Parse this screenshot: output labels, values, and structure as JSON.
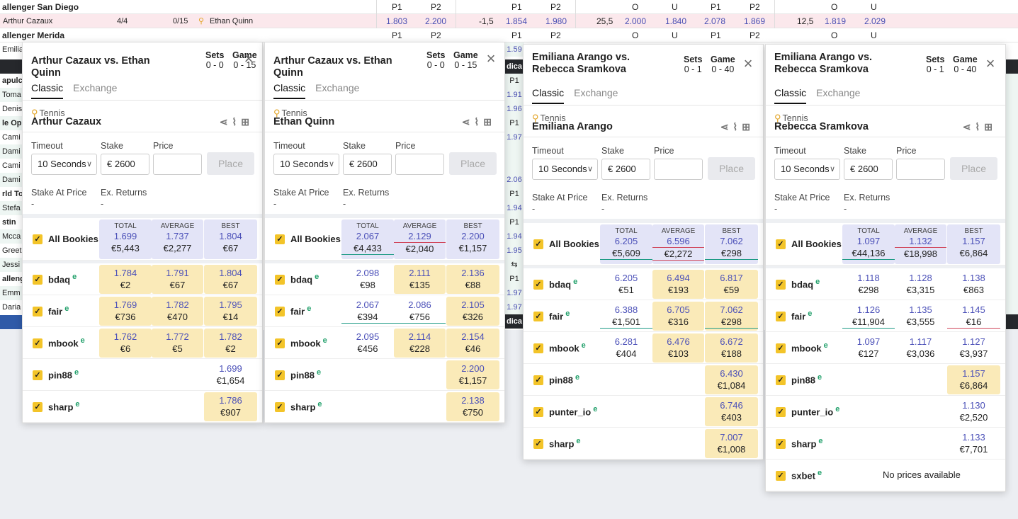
{
  "background": {
    "row1": {
      "left": "allenger San Diego",
      "h1": "P1",
      "h2": "P2",
      "h3": "P1",
      "h4": "P2",
      "h5": "O",
      "h6": "U",
      "h7": "P1",
      "h8": "P2",
      "h9": "O",
      "h10": "U"
    },
    "row2": {
      "p1": "Arthur Cazaux",
      "s1": "4/4",
      "s2": "0/15",
      "p2": "Ethan Quinn",
      "v1": "1.803",
      "v2": "2.200",
      "v3": "-1,5",
      "v4": "1.854",
      "v5": "1.980",
      "v6": "25,5",
      "v7": "2.000",
      "v8": "1.840",
      "v9": "2.078",
      "v10": "1.869",
      "v11": "12,5",
      "v12": "1.819",
      "v13": "2.029"
    },
    "row3": {
      "left": "allenger Merida",
      "h1": "P1",
      "h2": "P2",
      "h3": "P1",
      "h4": "P2",
      "h5": "O",
      "h6": "U",
      "h7": "P1",
      "h8": "P2",
      "h9": "O",
      "h10": "U"
    },
    "left_cells": [
      "Emilia",
      "",
      "apulco",
      "Toma",
      "Denis",
      "le Ope",
      "Cami",
      "Dami",
      "Cami",
      "Dami",
      "rld To",
      "Stefa",
      "stin",
      "Mcca",
      "Greet",
      "Jessi",
      "allenge",
      "Emm",
      "Daria"
    ],
    "mid_cells": [
      "1.59",
      "dica",
      "P1",
      "1.91",
      "1.96",
      "P1",
      "1.97",
      "",
      "",
      "2.06",
      "P1",
      "1.94",
      "P1",
      "1.94",
      "1.95",
      "⇆",
      "P1",
      "1.97",
      "1.97",
      "dica"
    ]
  },
  "panels": [
    {
      "title": "Arthur Cazaux vs. Ethan Quinn",
      "sets_label": "Sets",
      "sets": "0 - 0",
      "game_label": "Game",
      "game": "0 - 15",
      "tab_classic": "Classic",
      "tab_exchange": "Exchange",
      "sport": "Tennis",
      "player": "Arthur Cazaux",
      "timeout_label": "Timeout",
      "timeout": "10 Seconds",
      "stake_label": "Stake",
      "stake": "€ 2600",
      "price_label": "Price",
      "place": "Place",
      "sap_label": "Stake At Price",
      "exr_label": "Ex. Returns",
      "sap": "-",
      "exr": "-",
      "all": {
        "name": "All Bookies",
        "t_cap": "TOTAL",
        "t_o": "1.699",
        "t_s": "€5,443",
        "a_cap": "AVERAGE",
        "a_o": "1.737",
        "a_s": "€2,277",
        "b_cap": "BEST",
        "b_o": "1.804",
        "b_s": "€67"
      },
      "bookies": [
        {
          "name": "bdaq",
          "c": [
            [
              "1.784",
              "€2"
            ],
            [
              "1.791",
              "€67"
            ],
            [
              "1.804",
              "€67"
            ]
          ]
        },
        {
          "name": "fair",
          "c": [
            [
              "1.769",
              "€736"
            ],
            [
              "1.782",
              "€470"
            ],
            [
              "1.795",
              "€14"
            ]
          ]
        },
        {
          "name": "mbook",
          "c": [
            [
              "1.762",
              "€6"
            ],
            [
              "1.772",
              "€5"
            ],
            [
              "1.782",
              "€2"
            ]
          ]
        },
        {
          "name": "pin88",
          "c": [
            [
              "",
              ""
            ],
            [
              "",
              ""
            ],
            [
              "1.699",
              "€1,654"
            ]
          ]
        },
        {
          "name": "sharp",
          "c": [
            [
              "",
              ""
            ],
            [
              "",
              ""
            ],
            [
              "1.786",
              "€907"
            ]
          ]
        }
      ]
    },
    {
      "title": "Arthur Cazaux vs. Ethan Quinn",
      "sets_label": "Sets",
      "sets": "0 - 0",
      "game_label": "Game",
      "game": "0 - 15",
      "tab_classic": "Classic",
      "tab_exchange": "Exchange",
      "sport": "Tennis",
      "player": "Ethan Quinn",
      "timeout_label": "Timeout",
      "timeout": "10 Seconds",
      "stake_label": "Stake",
      "stake": "€ 2600",
      "price_label": "Price",
      "place": "Place",
      "sap_label": "Stake At Price",
      "exr_label": "Ex. Returns",
      "sap": "-",
      "exr": "-",
      "all": {
        "name": "All Bookies",
        "t_cap": "TOTAL",
        "t_o": "2.067",
        "t_s": "€4,433",
        "a_cap": "AVERAGE",
        "a_o": "2.129",
        "a_s": "€2,040",
        "b_cap": "BEST",
        "b_o": "2.200",
        "b_s": "€1,157"
      },
      "bookies": [
        {
          "name": "bdaq",
          "c": [
            [
              "2.098",
              "€98"
            ],
            [
              "2.111",
              "€135"
            ],
            [
              "2.136",
              "€88"
            ]
          ]
        },
        {
          "name": "fair",
          "c": [
            [
              "2.067",
              "€394"
            ],
            [
              "2.086",
              "€756"
            ],
            [
              "2.105",
              "€326"
            ]
          ]
        },
        {
          "name": "mbook",
          "c": [
            [
              "2.095",
              "€456"
            ],
            [
              "2.114",
              "€228"
            ],
            [
              "2.154",
              "€46"
            ]
          ]
        },
        {
          "name": "pin88",
          "c": [
            [
              "",
              ""
            ],
            [
              "",
              ""
            ],
            [
              "2.200",
              "€1,157"
            ]
          ]
        },
        {
          "name": "sharp",
          "c": [
            [
              "",
              ""
            ],
            [
              "",
              ""
            ],
            [
              "2.138",
              "€750"
            ]
          ]
        }
      ]
    },
    {
      "title": "Emiliana Arango vs. Rebecca Sramkova",
      "sets_label": "Sets",
      "sets": "0 - 1",
      "game_label": "Game",
      "game": "0 - 40",
      "tab_classic": "Classic",
      "tab_exchange": "Exchange",
      "sport": "Tennis",
      "player": "Emiliana Arango",
      "timeout_label": "Timeout",
      "timeout": "10 Seconds",
      "stake_label": "Stake",
      "stake": "€ 2600",
      "price_label": "Price",
      "place": "Place",
      "sap_label": "Stake At Price",
      "exr_label": "Ex. Returns",
      "sap": "-",
      "exr": "-",
      "all": {
        "name": "All Bookies",
        "t_cap": "TOTAL",
        "t_o": "6.205",
        "t_s": "€5,609",
        "a_cap": "AVERAGE",
        "a_o": "6.596",
        "a_s": "€2,272",
        "b_cap": "BEST",
        "b_o": "7.062",
        "b_s": "€298"
      },
      "bookies": [
        {
          "name": "bdaq",
          "c": [
            [
              "6.205",
              "€51"
            ],
            [
              "6.494",
              "€193"
            ],
            [
              "6.817",
              "€59"
            ]
          ]
        },
        {
          "name": "fair",
          "c": [
            [
              "6.388",
              "€1,501"
            ],
            [
              "6.705",
              "€316"
            ],
            [
              "7.062",
              "€298"
            ]
          ]
        },
        {
          "name": "mbook",
          "c": [
            [
              "6.281",
              "€404"
            ],
            [
              "6.476",
              "€103"
            ],
            [
              "6.672",
              "€188"
            ]
          ]
        },
        {
          "name": "pin88",
          "c": [
            [
              "",
              ""
            ],
            [
              "",
              ""
            ],
            [
              "6.430",
              "€1,084"
            ]
          ]
        },
        {
          "name": "punter_io",
          "c": [
            [
              "",
              ""
            ],
            [
              "",
              ""
            ],
            [
              "6.746",
              "€403"
            ]
          ]
        },
        {
          "name": "sharp",
          "c": [
            [
              "",
              ""
            ],
            [
              "",
              ""
            ],
            [
              "7.007",
              "€1,008"
            ]
          ]
        }
      ]
    },
    {
      "title": "Emiliana Arango vs. Rebecca Sramkova",
      "sets_label": "Sets",
      "sets": "0 - 1",
      "game_label": "Game",
      "game": "0 - 40",
      "tab_classic": "Classic",
      "tab_exchange": "Exchange",
      "sport": "Tennis",
      "player": "Rebecca Sramkova",
      "timeout_label": "Timeout",
      "timeout": "10 Seconds",
      "stake_label": "Stake",
      "stake": "€ 2600",
      "price_label": "Price",
      "place": "Place",
      "sap_label": "Stake At Price",
      "exr_label": "Ex. Returns",
      "sap": "-",
      "exr": "-",
      "all": {
        "name": "All Bookies",
        "t_cap": "TOTAL",
        "t_o": "1.097",
        "t_s": "€44,136",
        "a_cap": "AVERAGE",
        "a_o": "1.132",
        "a_s": "€18,998",
        "b_cap": "BEST",
        "b_o": "1.157",
        "b_s": "€6,864"
      },
      "bookies": [
        {
          "name": "bdaq",
          "c": [
            [
              "1.118",
              "€298"
            ],
            [
              "1.128",
              "€3,315"
            ],
            [
              "1.138",
              "€863"
            ]
          ]
        },
        {
          "name": "fair",
          "c": [
            [
              "1.126",
              "€11,904"
            ],
            [
              "1.135",
              "€3,555"
            ],
            [
              "1.145",
              "€16"
            ]
          ]
        },
        {
          "name": "mbook",
          "c": [
            [
              "1.097",
              "€127"
            ],
            [
              "1.117",
              "€3,036"
            ],
            [
              "1.127",
              "€3,937"
            ]
          ]
        },
        {
          "name": "pin88",
          "c": [
            [
              "",
              ""
            ],
            [
              "",
              ""
            ],
            [
              "1.157",
              "€6,864"
            ]
          ]
        },
        {
          "name": "punter_io",
          "c": [
            [
              "",
              ""
            ],
            [
              "",
              ""
            ],
            [
              "1.130",
              "€2,520"
            ]
          ]
        },
        {
          "name": "sharp",
          "c": [
            [
              "",
              ""
            ],
            [
              "",
              ""
            ],
            [
              "1.133",
              "€7,701"
            ]
          ]
        },
        {
          "name": "sxbet",
          "none": "No prices available"
        }
      ]
    }
  ]
}
